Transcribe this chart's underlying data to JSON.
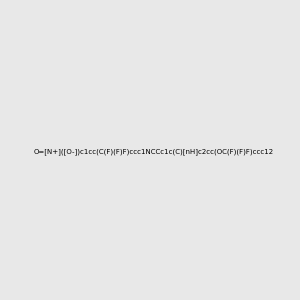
{
  "smiles": "O=[N+]([O-])c1cc(C(F)(F)F)ccc1NCCc1c(C)[nH]c2cc(OC(F)(F)F)ccc12",
  "image_size": 300,
  "background_color": "#e8e8e8"
}
